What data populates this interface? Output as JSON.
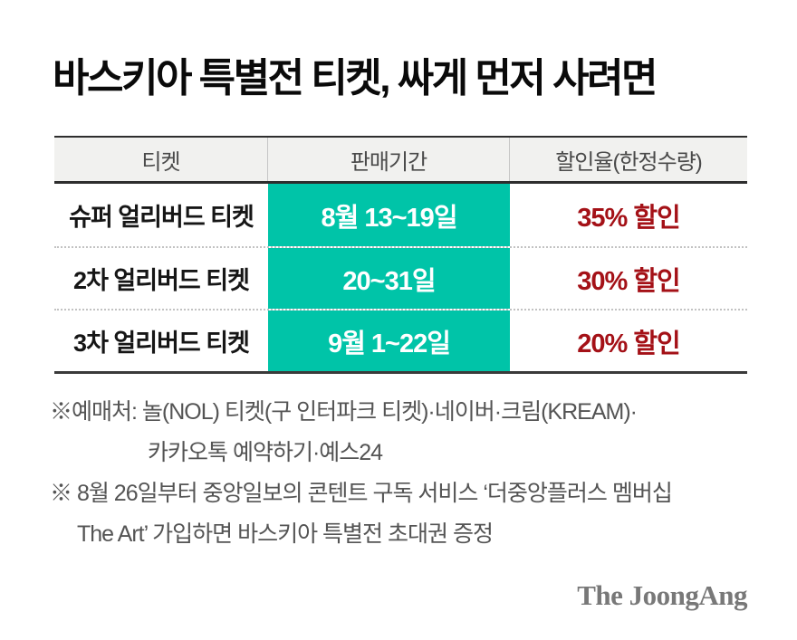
{
  "title": "바스키아 특별전 티켓, 싸게 먼저 사려면",
  "table": {
    "headers": [
      "티켓",
      "판매기간",
      "할인율(한정수량)"
    ],
    "rows": [
      {
        "ticket": "슈퍼 얼리버드 티켓",
        "period": "8월 13~19일",
        "discount": "35% 할인"
      },
      {
        "ticket": "2차 얼리버드 티켓",
        "period": "20~31일",
        "discount": "30% 할인"
      },
      {
        "ticket": "3차 얼리버드 티켓",
        "period": "9월 1~22일",
        "discount": "20% 할인"
      }
    ]
  },
  "notes": {
    "lines": [
      "※예매처: 놀(NOL) 티켓(구 인터파크 티켓)·네이버·크림(KREAM)·",
      "카카오톡 예약하기·예스24",
      "※ 8월 26일부터 중앙일보의 콘텐트 구독 서비스 ‘더중앙플러스 멤버십",
      "The Art’ 가입하면 바스키아 특별전 초대권 증정"
    ]
  },
  "logo": "The JoongAng",
  "colors": {
    "highlight_teal": "#00c4a8",
    "discount_red": "#a41117",
    "header_bg": "#f1f1ef"
  },
  "chart_data": {
    "type": "table",
    "title": "바스키아 특별전 티켓, 싸게 먼저 사려면",
    "columns": [
      "티켓",
      "판매기간",
      "할인율(한정수량)"
    ],
    "rows": [
      [
        "슈퍼 얼리버드 티켓",
        "8월 13~19일",
        "35% 할인"
      ],
      [
        "2차 얼리버드 티켓",
        "20~31일",
        "30% 할인"
      ],
      [
        "3차 얼리버드 티켓",
        "9월 1~22일",
        "20% 할인"
      ]
    ],
    "notes": [
      "※예매처: 놀(NOL) 티켓(구 인터파크 티켓)·네이버·크림(KREAM)·카카오톡 예약하기·예스24",
      "※ 8월 26일부터 중앙일보의 콘텐트 구독 서비스 ‘더중앙플러스 멤버십 The Art’ 가입하면 바스키아 특별전 초대권 증정"
    ],
    "source": "The JoongAng"
  }
}
